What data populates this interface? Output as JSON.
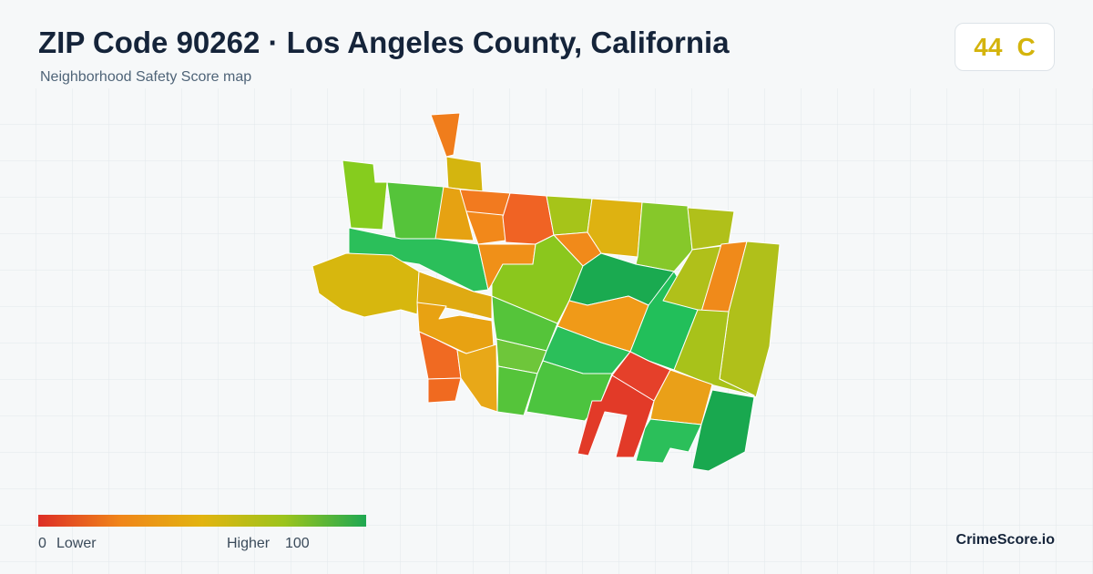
{
  "header": {
    "title": "ZIP Code 90262 · Los Angeles County, California",
    "subtitle": "Neighborhood Safety Score map"
  },
  "score": {
    "value": 44,
    "grade": "C"
  },
  "legend": {
    "min": 0,
    "min_label": "Lower",
    "max_label": "Higher",
    "max": 100
  },
  "brand": "CrimeScore.io"
}
